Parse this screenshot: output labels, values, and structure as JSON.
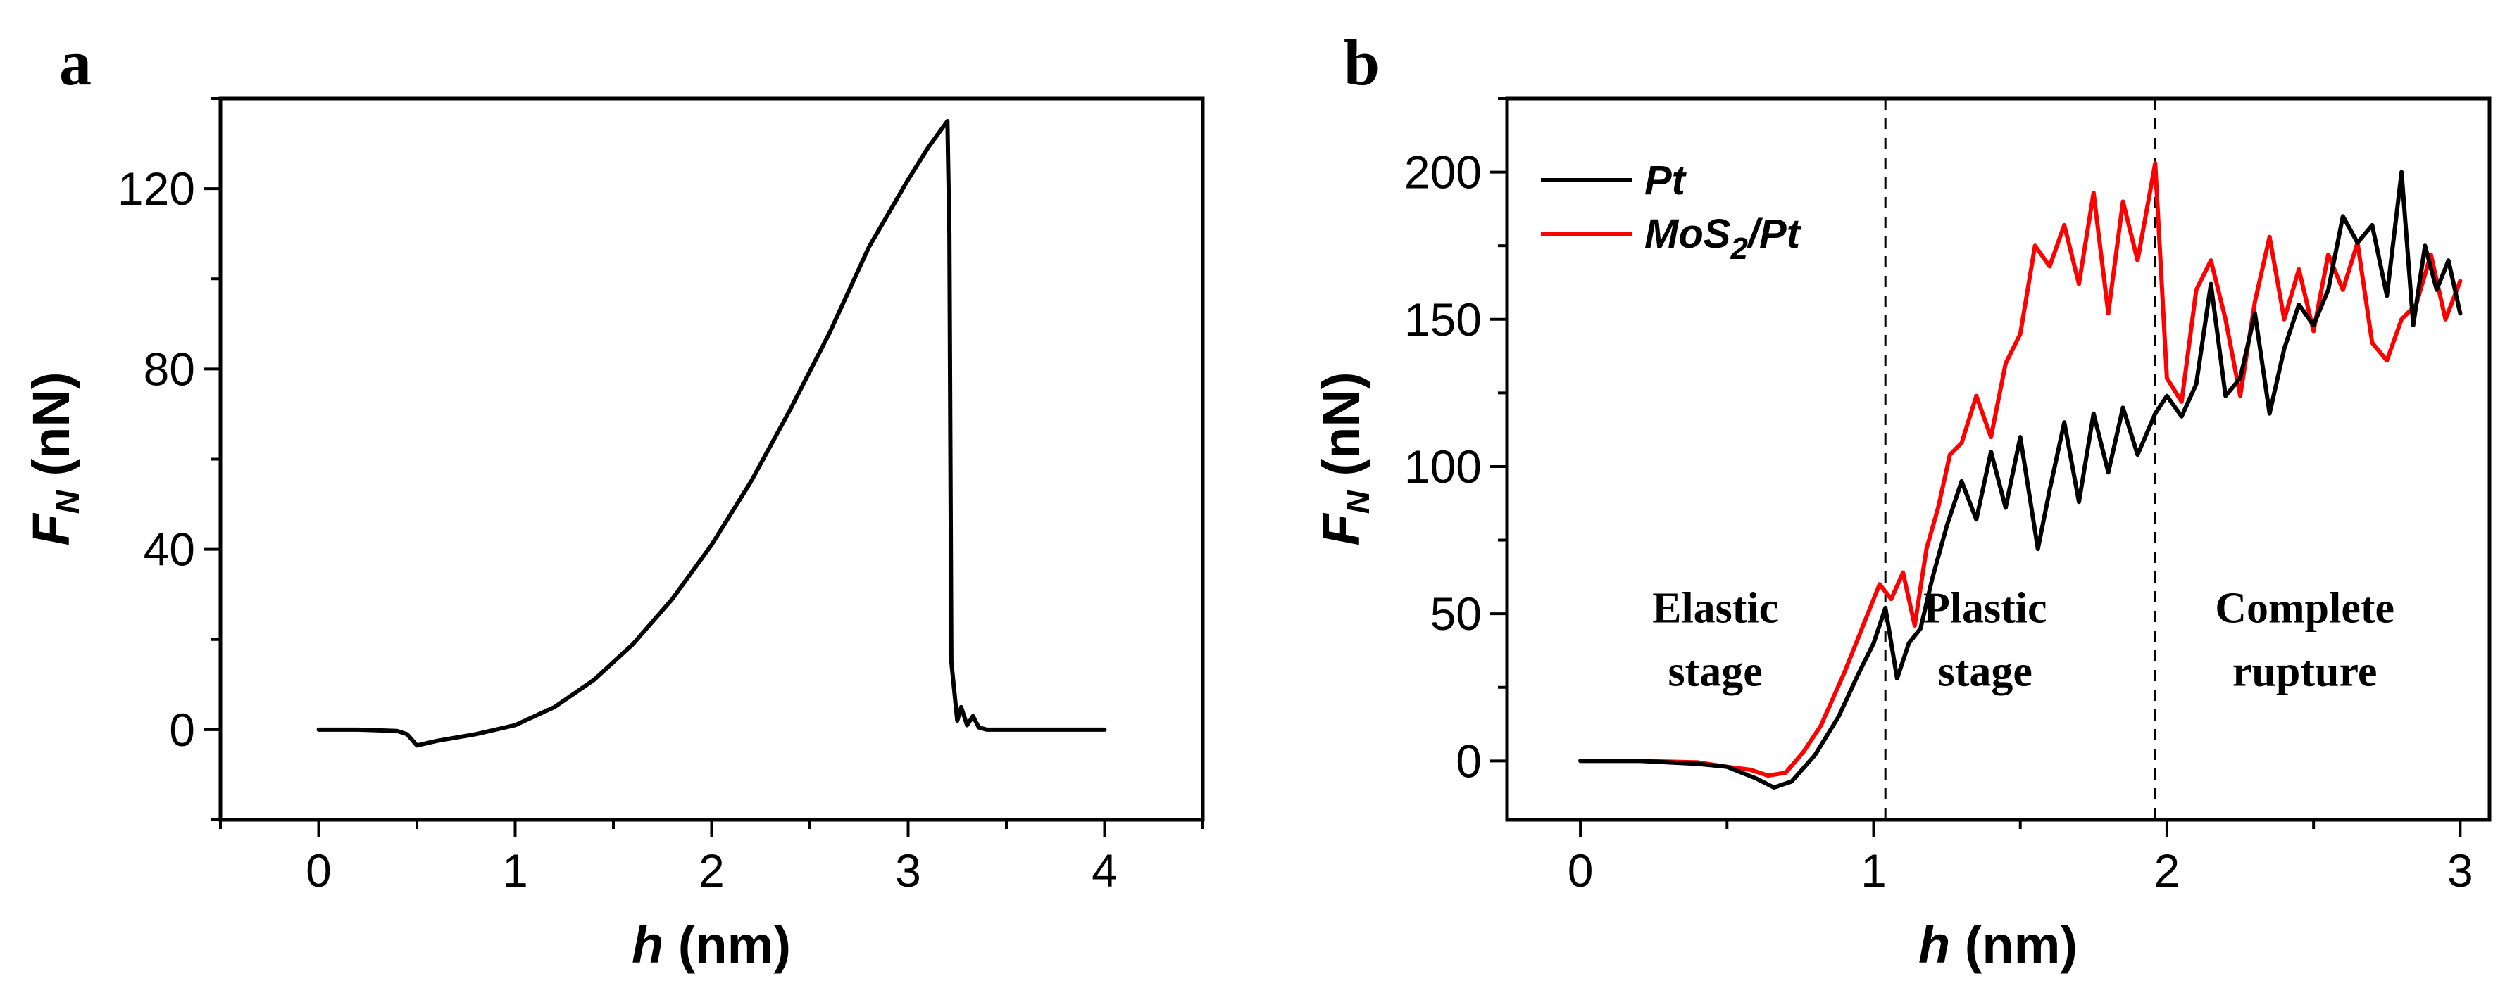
{
  "chart_data": [
    {
      "panel": "a",
      "type": "line",
      "xlabel_var": "h",
      "xlabel_unit": " (nm)",
      "ylabel_var": "F",
      "ylabel_sub": "N",
      "ylabel_unit": " (nN)",
      "xlim": [
        -0.5,
        4.5
      ],
      "ylim": [
        -20,
        140
      ],
      "xticks": [
        0,
        1,
        2,
        3,
        4
      ],
      "yticks": [
        0,
        40,
        80,
        120
      ],
      "series": [
        {
          "name": "",
          "color": "#000000",
          "x": [
            0,
            0.2,
            0.4,
            0.45,
            0.5,
            0.6,
            0.8,
            1.0,
            1.2,
            1.4,
            1.6,
            1.8,
            2.0,
            2.2,
            2.4,
            2.6,
            2.8,
            3.0,
            3.1,
            3.2,
            3.21,
            3.22,
            3.25,
            3.27,
            3.3,
            3.33,
            3.36,
            3.4,
            3.6,
            4.0
          ],
          "y": [
            0,
            0,
            -0.3,
            -1,
            -3.5,
            -2.5,
            -1,
            1,
            5,
            11,
            19,
            29,
            41,
            55,
            71,
            88,
            107,
            122,
            129,
            135,
            110,
            15,
            2,
            5,
            1,
            3,
            0.5,
            0,
            0,
            0
          ]
        }
      ]
    },
    {
      "panel": "b",
      "type": "line",
      "xlabel_var": "h",
      "xlabel_unit": " (nm)",
      "ylabel_var": "F",
      "ylabel_sub": "N",
      "ylabel_unit": " (nN)",
      "xlim": [
        -0.25,
        3.1
      ],
      "ylim": [
        -20,
        225
      ],
      "xticks": [
        0,
        1,
        2,
        3
      ],
      "yticks": [
        0,
        50,
        100,
        150,
        200
      ],
      "vlines": [
        1.04,
        1.96
      ],
      "annotations": [
        {
          "lines": [
            "Elastic",
            "stage"
          ],
          "x": 0.46,
          "y": 47
        },
        {
          "lines": [
            "Plastic",
            "stage"
          ],
          "x": 1.38,
          "y": 47
        },
        {
          "lines": [
            "Complete",
            "rupture"
          ],
          "x": 2.47,
          "y": 47
        }
      ],
      "series": [
        {
          "name": "Pt",
          "color": "#000000",
          "x": [
            0,
            0.2,
            0.4,
            0.5,
            0.6,
            0.66,
            0.72,
            0.8,
            0.88,
            0.95,
            1.0,
            1.04,
            1.08,
            1.12,
            1.16,
            1.2,
            1.25,
            1.3,
            1.35,
            1.4,
            1.45,
            1.5,
            1.56,
            1.6,
            1.65,
            1.7,
            1.75,
            1.8,
            1.85,
            1.9,
            1.96,
            2.0,
            2.05,
            2.1,
            2.15,
            2.2,
            2.25,
            2.3,
            2.35,
            2.4,
            2.45,
            2.5,
            2.55,
            2.6,
            2.65,
            2.7,
            2.75,
            2.8,
            2.84,
            2.88,
            2.92,
            2.96,
            3.0
          ],
          "y": [
            0,
            0,
            -1,
            -2,
            -6,
            -9,
            -7,
            2,
            15,
            30,
            40,
            52,
            28,
            40,
            45,
            62,
            80,
            95,
            82,
            105,
            86,
            110,
            72,
            92,
            115,
            88,
            118,
            98,
            120,
            104,
            118,
            124,
            117,
            128,
            162,
            124,
            130,
            152,
            118,
            140,
            155,
            148,
            160,
            185,
            176,
            182,
            158,
            200,
            148,
            175,
            160,
            170,
            152
          ]
        },
        {
          "name": "MoS2/Pt",
          "name_main": "MoS",
          "name_sub": "2",
          "name_tail": "/Pt",
          "color": "#ff0000",
          "x": [
            0,
            0.2,
            0.4,
            0.5,
            0.58,
            0.64,
            0.7,
            0.76,
            0.82,
            0.9,
            0.96,
            1.02,
            1.06,
            1.1,
            1.14,
            1.18,
            1.22,
            1.26,
            1.3,
            1.35,
            1.4,
            1.45,
            1.5,
            1.55,
            1.6,
            1.65,
            1.7,
            1.75,
            1.8,
            1.85,
            1.9,
            1.96,
            2.0,
            2.05,
            2.1,
            2.15,
            2.2,
            2.25,
            2.3,
            2.35,
            2.4,
            2.45,
            2.5,
            2.55,
            2.6,
            2.65,
            2.7,
            2.75,
            2.8,
            2.85,
            2.9,
            2.95,
            3.0
          ],
          "y": [
            0,
            0,
            -0.5,
            -2,
            -3,
            -5,
            -4,
            3,
            12,
            30,
            45,
            60,
            55,
            64,
            46,
            72,
            86,
            104,
            108,
            124,
            110,
            135,
            145,
            175,
            168,
            182,
            162,
            193,
            152,
            190,
            170,
            203,
            130,
            122,
            160,
            170,
            150,
            124,
            156,
            178,
            150,
            167,
            146,
            172,
            160,
            176,
            142,
            136,
            150,
            155,
            172,
            150,
            163
          ]
        }
      ]
    }
  ],
  "panel_labels": {
    "a": "a",
    "b": "b"
  }
}
